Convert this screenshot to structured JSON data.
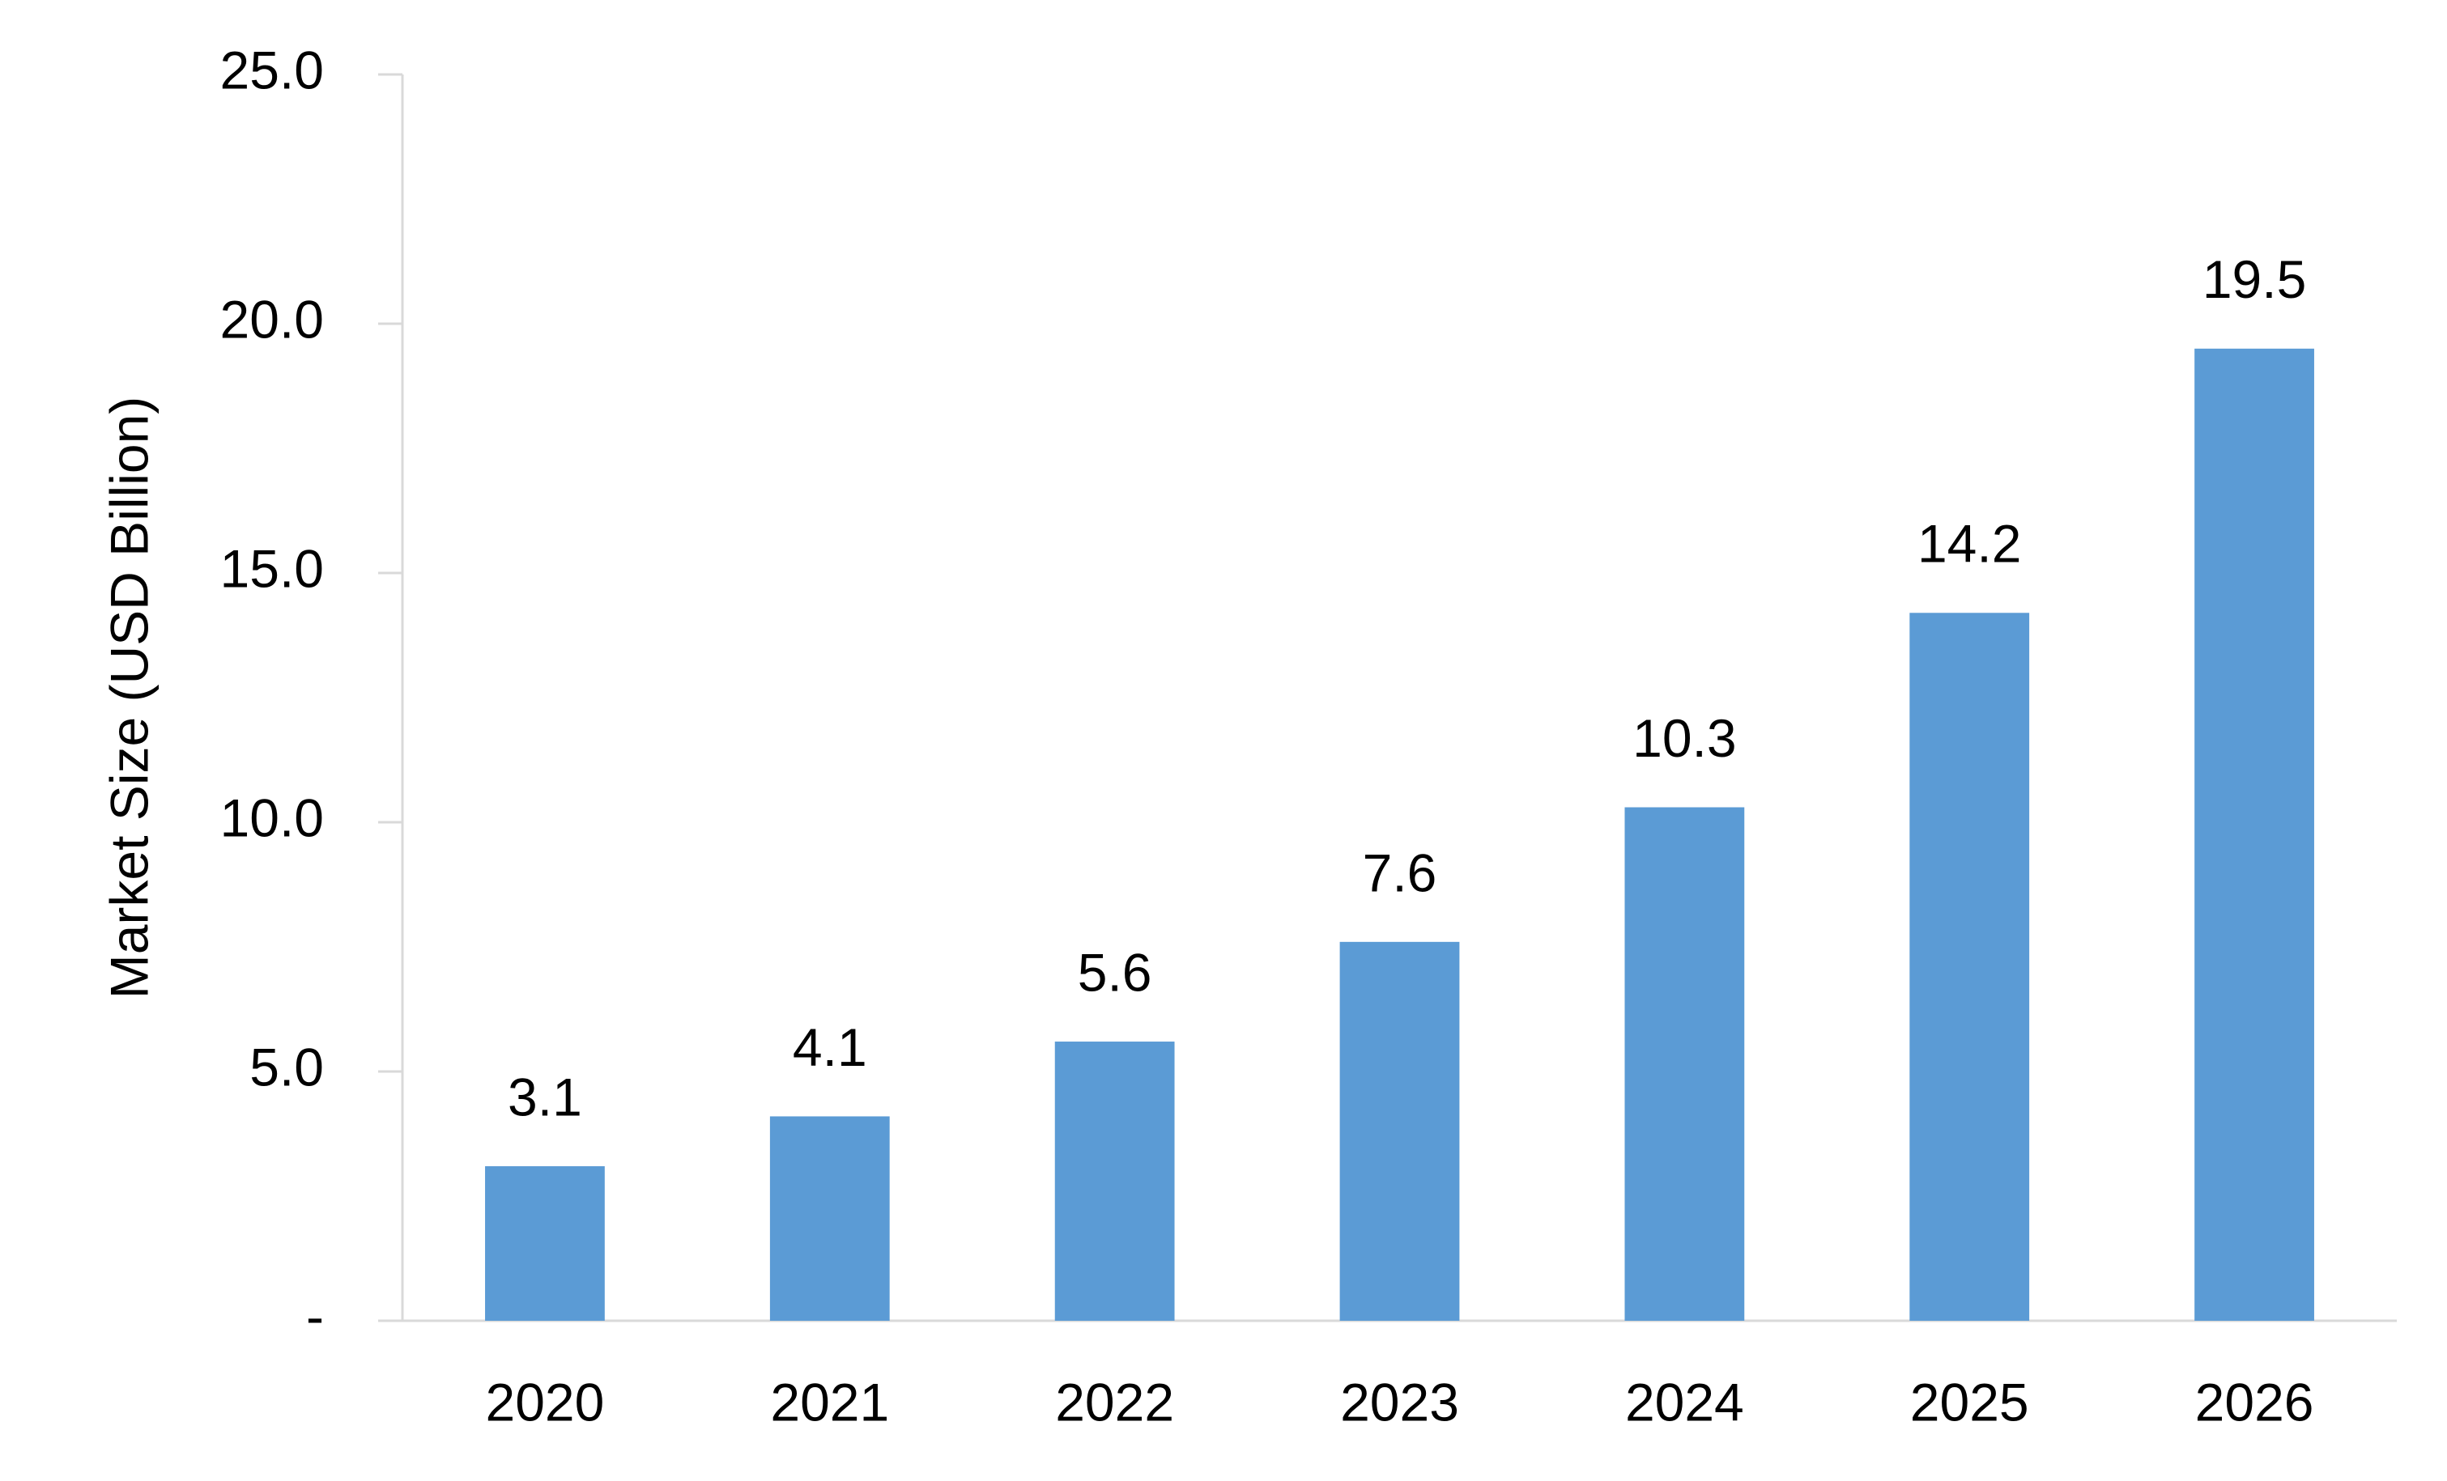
{
  "chart_data": {
    "type": "bar",
    "y_label": "Market Size (USD Billion)",
    "categories": [
      "2020",
      "2021",
      "2022",
      "2023",
      "2024",
      "2025",
      "2026"
    ],
    "values": [
      3.1,
      4.1,
      5.6,
      7.6,
      10.3,
      14.2,
      19.5
    ],
    "color": "#5b9bd5",
    "ylim": [
      0,
      25
    ],
    "yticks": [
      {
        "value": 0,
        "label": "-"
      },
      {
        "value": 5,
        "label": "5.0"
      },
      {
        "value": 10,
        "label": "10.0"
      },
      {
        "value": 15,
        "label": "15.0"
      },
      {
        "value": 20,
        "label": "20.0"
      },
      {
        "value": 25,
        "label": "25.0"
      }
    ],
    "grid": false,
    "data_labels": true
  }
}
